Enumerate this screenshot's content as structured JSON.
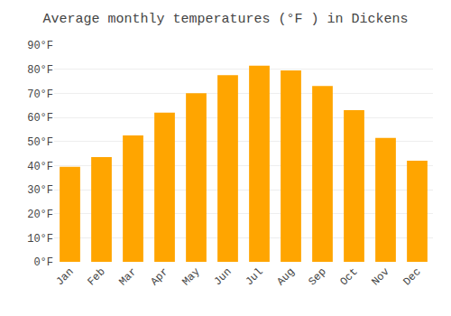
{
  "chart_data": {
    "type": "bar",
    "title": "Average monthly temperatures (°F ) in Dickens",
    "categories": [
      "Jan",
      "Feb",
      "Mar",
      "Apr",
      "May",
      "Jun",
      "Jul",
      "Aug",
      "Sep",
      "Oct",
      "Nov",
      "Dec"
    ],
    "values": [
      39.5,
      43.5,
      52.5,
      62.0,
      70.0,
      77.5,
      81.5,
      79.5,
      73.0,
      63.0,
      51.5,
      42.0
    ],
    "color": "#FFA500",
    "ylim": [
      0,
      90
    ],
    "yticks": [
      {
        "value": 0,
        "label": "0°F"
      },
      {
        "value": 10,
        "label": "10°F"
      },
      {
        "value": 20,
        "label": "20°F"
      },
      {
        "value": 30,
        "label": "30°F"
      },
      {
        "value": 40,
        "label": "40°F"
      },
      {
        "value": 50,
        "label": "50°F"
      },
      {
        "value": 60,
        "label": "60°F"
      },
      {
        "value": 70,
        "label": "70°F"
      },
      {
        "value": 80,
        "label": "80°F"
      },
      {
        "value": 90,
        "label": "90°F"
      }
    ],
    "grid": true
  }
}
